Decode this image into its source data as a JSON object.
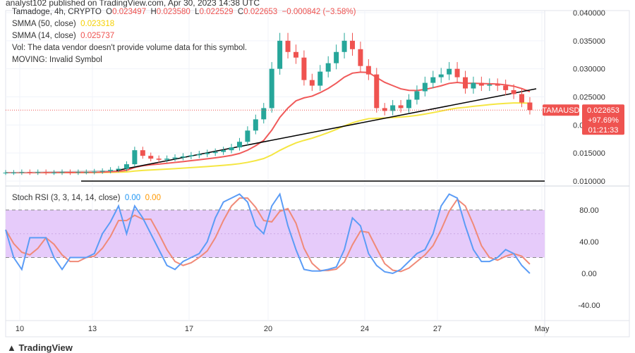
{
  "attribution": "analyst102 published on TradingView.com, Apr 30, 2023 14:38 UTC",
  "header": {
    "symbol": "Tamadoge, 4h, CRYPTO",
    "o_label": "O",
    "o": "0.023497",
    "h_label": "H",
    "h": "0.023580",
    "l_label": "L",
    "l": "0.022529",
    "c_label": "C",
    "c": "0.022653",
    "change": "−0.000842 (−3.58%)"
  },
  "indicators": {
    "smma50_label": "SMMA (50, close)",
    "smma50": "0.023318",
    "smma14_label": "SMMA (14, close)",
    "smma14": "0.025737",
    "vol": "Vol: The data vendor doesn't provide volume data for this symbol.",
    "moving": "MOVING: Invalid Symbol",
    "stoch_label": "Stoch RSI (3, 3, 14, 14, close)",
    "stoch_k": "0.00",
    "stoch_d": "0.00"
  },
  "price_tag": {
    "symbol": "TAMAUSD",
    "price": "0.022653",
    "change": "+97.69%",
    "countdown": "01:21:33"
  },
  "colors": {
    "up": "#26a69a",
    "down": "#ef5350",
    "smma50": "#f5e642",
    "smma14": "#f05a5a",
    "stoch_k": "#5b9cf6",
    "stoch_d": "#f08a78",
    "band": "#e6cbfa"
  },
  "logo": "TradingView",
  "chart_data": [
    {
      "type": "candlestick",
      "interval": "4h (rendered at 8h sampling)",
      "ylim": [
        0.01,
        0.04
      ],
      "y_ticks": [
        "0.040000",
        "0.035000",
        "0.030000",
        "0.025000",
        "0.020000",
        "0.015000",
        "0.010000"
      ],
      "x_ticks": [
        "10",
        "13",
        "17",
        "20",
        "24",
        "27",
        "May"
      ],
      "closes": [
        0.0115,
        0.0115,
        0.0116,
        0.0115,
        0.0116,
        0.0115,
        0.0115,
        0.0116,
        0.0115,
        0.0116,
        0.0116,
        0.0117,
        0.0118,
        0.012,
        0.0122,
        0.013,
        0.0155,
        0.0145,
        0.014,
        0.0138,
        0.014,
        0.0142,
        0.0144,
        0.0146,
        0.0148,
        0.015,
        0.0152,
        0.0155,
        0.016,
        0.017,
        0.019,
        0.021,
        0.023,
        0.03,
        0.035,
        0.033,
        0.032,
        0.028,
        0.027,
        0.0295,
        0.031,
        0.033,
        0.035,
        0.0335,
        0.0305,
        0.029,
        0.023,
        0.0225,
        0.0235,
        0.023,
        0.0245,
        0.026,
        0.0275,
        0.0285,
        0.029,
        0.03,
        0.0285,
        0.0265,
        0.0275,
        0.027,
        0.0272,
        0.027,
        0.0262,
        0.0255,
        0.024,
        0.02265
      ]
    },
    {
      "type": "line",
      "name": "Stoch RSI",
      "ylim": [
        -50,
        110
      ],
      "y_ticks": [
        "80.00",
        "40.00",
        "0.00",
        "-40.00"
      ],
      "band": [
        20,
        80
      ],
      "k": [
        55,
        20,
        5,
        45,
        45,
        45,
        20,
        5,
        20,
        20,
        20,
        25,
        50,
        65,
        85,
        50,
        85,
        70,
        50,
        30,
        10,
        5,
        15,
        20,
        25,
        40,
        70,
        90,
        95,
        100,
        90,
        60,
        50,
        85,
        100,
        60,
        30,
        5,
        3,
        3,
        5,
        8,
        30,
        70,
        60,
        25,
        10,
        2,
        0,
        5,
        15,
        25,
        30,
        50,
        85,
        100,
        95,
        60,
        30,
        15,
        15,
        20,
        30,
        25,
        10,
        0
      ]
    }
  ]
}
